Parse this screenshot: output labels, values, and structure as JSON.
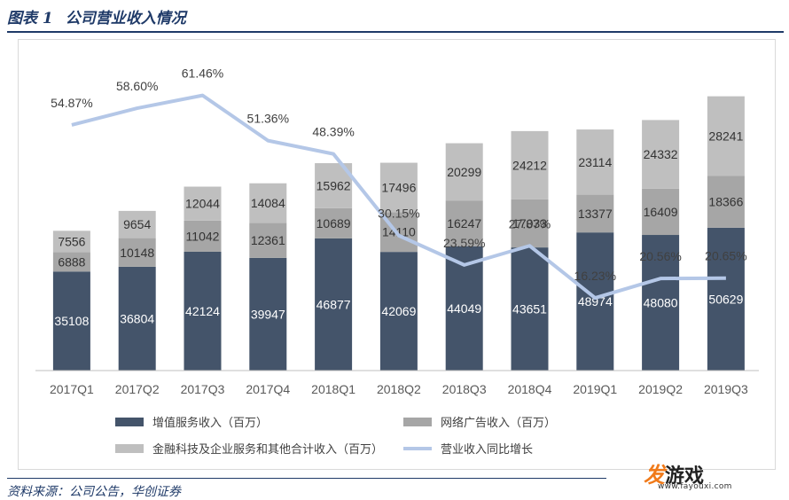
{
  "figure": {
    "label": "图表 1",
    "title": "公司营业收入情况",
    "source": "资料来源：公司公告，华创证券"
  },
  "watermark": {
    "brand_fa": "发",
    "brand_rest": "游戏",
    "url": "www.fayouxi.com"
  },
  "colors": {
    "value_added": "#44546a",
    "advertising": "#a6a6a6",
    "fintech": "#bfbfbf",
    "growth_line": "#b4c7e7",
    "title": "#1f3a68"
  },
  "chart_data": {
    "type": "bar",
    "stacked": true,
    "categories": [
      "2017Q1",
      "2017Q2",
      "2017Q3",
      "2017Q4",
      "2018Q1",
      "2018Q2",
      "2018Q3",
      "2018Q4",
      "2019Q1",
      "2019Q2",
      "2019Q3"
    ],
    "ylim": [
      0,
      110000
    ],
    "y2lim": [
      0,
      0.8
    ],
    "grid": false,
    "legend_position": "bottom",
    "series": [
      {
        "name": "增值服务收入（百万）",
        "kind": "bar",
        "values": [
          35108,
          36804,
          42124,
          39947,
          46877,
          42069,
          44049,
          43651,
          48974,
          48080,
          50629
        ],
        "labels": [
          "35108",
          "36804",
          "42124",
          "39947",
          "46877",
          "42069",
          "44049",
          "43651",
          "48974",
          "48080",
          "50629"
        ]
      },
      {
        "name": "网络广告收入（百万）",
        "kind": "bar",
        "values": [
          6888,
          10148,
          11042,
          12361,
          10689,
          14110,
          16247,
          17033,
          13377,
          16409,
          18366
        ],
        "labels": [
          "6888",
          "10148",
          "11042",
          "12361",
          "10689",
          "14110",
          "16247",
          "17033",
          "13377",
          "16409",
          "18366"
        ]
      },
      {
        "name": "金融科技及企业服务和其他合计收入（百万）",
        "kind": "bar",
        "values": [
          7556,
          9654,
          12044,
          14084,
          15962,
          17496,
          20299,
          24212,
          23114,
          24332,
          28241
        ],
        "labels": [
          "7556",
          "9654",
          "12044",
          "14084",
          "15962",
          "17496",
          "20299",
          "24212",
          "23114",
          "24332",
          "28241"
        ]
      },
      {
        "name": "营业收入同比增长",
        "kind": "line",
        "axis": "secondary",
        "values": [
          0.5487,
          0.586,
          0.6146,
          0.5136,
          0.4839,
          0.3015,
          0.2359,
          0.2787,
          0.1623,
          0.2056,
          0.2065
        ],
        "labels": [
          "54.87%",
          "58.60%",
          "61.46%",
          "51.36%",
          "48.39%",
          "30.15%",
          "23.59%",
          "27.87%",
          "16.23%",
          "20.56%",
          "20.65%"
        ]
      }
    ]
  }
}
